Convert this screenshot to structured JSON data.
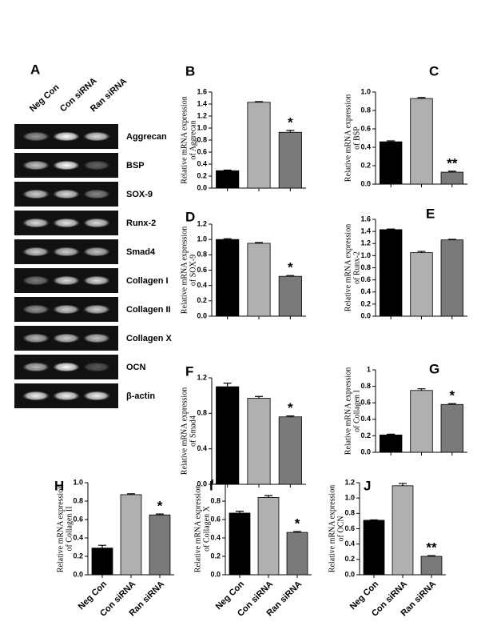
{
  "gel": {
    "panel": "A",
    "lanes": [
      "Neg Con",
      "Con siRNA",
      "Ran siRNA"
    ],
    "genes": [
      "Aggrecan",
      "BSP",
      "SOX-9",
      "Runx-2",
      "Smad4",
      "Collagen I",
      "Collagen II",
      "Collagen X",
      "OCN",
      "β-actin"
    ]
  },
  "chart_data": [
    {
      "type": "bar",
      "panel": "B",
      "ylabel": [
        "Relative mRNA expression",
        "of Aggrecan"
      ],
      "categories": [
        null,
        null,
        null
      ],
      "values": [
        0.29,
        1.43,
        0.93
      ],
      "errors": [
        0.01,
        0.01,
        0.03
      ],
      "annotations": [
        null,
        null,
        "*"
      ],
      "colors": [
        "#000000",
        "#b0b0b0",
        "#7a7a7a"
      ],
      "ylim": [
        0,
        1.6
      ],
      "yticks": [
        {
          "value": 0,
          "label": "0.0"
        },
        0.2,
        0.4,
        0.6,
        0.8,
        {
          "value": 1,
          "label": "1.0"
        },
        1.2,
        1.4,
        1.6
      ]
    },
    {
      "type": "bar",
      "panel": "C",
      "ylabel": [
        "Relative mRNA expression",
        "of BSP"
      ],
      "categories": [
        null,
        null,
        null
      ],
      "values": [
        0.46,
        0.93,
        0.13
      ],
      "errors": [
        0.01,
        0.01,
        0.01
      ],
      "annotations": [
        null,
        null,
        "**"
      ],
      "colors": [
        "#000000",
        "#b0b0b0",
        "#7a7a7a"
      ],
      "ylim": [
        0,
        1
      ],
      "yticks": [
        {
          "value": 0,
          "label": "0.0"
        },
        0.2,
        0.4,
        0.6,
        0.8,
        {
          "value": 1,
          "label": "1.0"
        }
      ]
    },
    {
      "type": "bar",
      "panel": "D",
      "ylabel": [
        "Relative mRNA expression",
        "of SOX-9"
      ],
      "categories": [
        null,
        null,
        null
      ],
      "values": [
        1.0,
        0.95,
        0.52
      ],
      "errors": [
        0.01,
        0.01,
        0.01
      ],
      "annotations": [
        null,
        null,
        "*"
      ],
      "colors": [
        "#000000",
        "#b0b0b0",
        "#7a7a7a"
      ],
      "ylim": [
        0,
        1.2
      ],
      "yticks": [
        {
          "value": 0,
          "label": "0.0"
        },
        0.2,
        0.4,
        0.6,
        0.8,
        {
          "value": 1,
          "label": "1.0"
        },
        1.2
      ]
    },
    {
      "type": "bar",
      "panel": "E",
      "ylabel": [
        "Relative mRNA expression",
        "of Runx-2"
      ],
      "categories": [
        null,
        null,
        null
      ],
      "values": [
        1.43,
        1.05,
        1.26
      ],
      "errors": [
        0.01,
        0.02,
        0.01
      ],
      "annotations": [
        null,
        null,
        null
      ],
      "colors": [
        "#000000",
        "#b0b0b0",
        "#7a7a7a"
      ],
      "ylim": [
        0,
        1.6
      ],
      "yticks": [
        {
          "value": 0,
          "label": "0.0"
        },
        0.2,
        0.4,
        0.6,
        0.8,
        {
          "value": 1,
          "label": "1.0"
        },
        1.2,
        1.4,
        1.6
      ]
    },
    {
      "type": "bar",
      "panel": "F",
      "ylabel": [
        "Relative mRNA expression",
        "of Smad4"
      ],
      "categories": [
        null,
        null,
        null
      ],
      "values": [
        1.1,
        0.97,
        0.76
      ],
      "errors": [
        0.04,
        0.02,
        0.01
      ],
      "annotations": [
        null,
        null,
        "*"
      ],
      "colors": [
        "#000000",
        "#b0b0b0",
        "#7a7a7a"
      ],
      "ylim": [
        0,
        1.2
      ],
      "yticks": [
        {
          "value": 0,
          "label": "0.0"
        },
        0.4,
        0.8,
        1.2
      ]
    },
    {
      "type": "bar",
      "panel": "G",
      "ylabel": [
        "Relative mRNA expression",
        "of Collagen I"
      ],
      "categories": [
        null,
        null,
        null
      ],
      "values": [
        0.21,
        0.75,
        0.58
      ],
      "errors": [
        0.01,
        0.02,
        0.01
      ],
      "annotations": [
        null,
        null,
        "*"
      ],
      "colors": [
        "#000000",
        "#b0b0b0",
        "#7a7a7a"
      ],
      "ylim": [
        0,
        1
      ],
      "yticks": [
        {
          "value": 0,
          "label": "0.0"
        },
        0.2,
        0.4,
        0.6,
        0.8,
        {
          "value": 1,
          "label": "1"
        }
      ]
    },
    {
      "type": "bar",
      "panel": "H",
      "ylabel": [
        "Relative mRNA expression",
        "of Collagen II"
      ],
      "categories": [
        "Neg Con",
        "Con siRNA",
        "Ran siRNA"
      ],
      "values": [
        0.29,
        0.87,
        0.65
      ],
      "errors": [
        0.03,
        0.01,
        0.01
      ],
      "annotations": [
        null,
        null,
        "*"
      ],
      "colors": [
        "#000000",
        "#b0b0b0",
        "#7a7a7a"
      ],
      "ylim": [
        0,
        1
      ],
      "yticks": [
        {
          "value": 0,
          "label": "0.0"
        },
        0.2,
        0.4,
        0.6,
        0.8,
        {
          "value": 1,
          "label": "1.0"
        }
      ]
    },
    {
      "type": "bar",
      "panel": "I",
      "ylabel": [
        "Relative mRNA expression",
        "of Collagen X"
      ],
      "categories": [
        "Neg Con",
        "Con siRNA",
        "Ran siRNA"
      ],
      "values": [
        0.67,
        0.84,
        0.46
      ],
      "errors": [
        0.02,
        0.02,
        0.01
      ],
      "annotations": [
        null,
        null,
        "*"
      ],
      "colors": [
        "#000000",
        "#b0b0b0",
        "#7a7a7a"
      ],
      "ylim": [
        0,
        1
      ],
      "yticks": [
        {
          "value": 0,
          "label": "0.0"
        },
        0.2,
        0.4,
        0.6,
        0.8,
        {
          "value": 1,
          "label": "1.0"
        }
      ]
    },
    {
      "type": "bar",
      "panel": "J",
      "ylabel": [
        "Relative mRNA expression",
        "of OCN"
      ],
      "categories": [
        "Neg Con",
        "Con siRNA",
        "Ran siRNA"
      ],
      "values": [
        0.71,
        1.16,
        0.24
      ],
      "errors": [
        0.005,
        0.03,
        0.01
      ],
      "annotations": [
        null,
        null,
        "**"
      ],
      "colors": [
        "#000000",
        "#b0b0b0",
        "#7a7a7a"
      ],
      "ylim": [
        0,
        1.2
      ],
      "yticks": [
        {
          "value": 0,
          "label": "0.0"
        },
        0.2,
        0.4,
        0.6,
        0.8,
        {
          "value": 1,
          "label": "1.0"
        },
        1.2
      ]
    }
  ]
}
